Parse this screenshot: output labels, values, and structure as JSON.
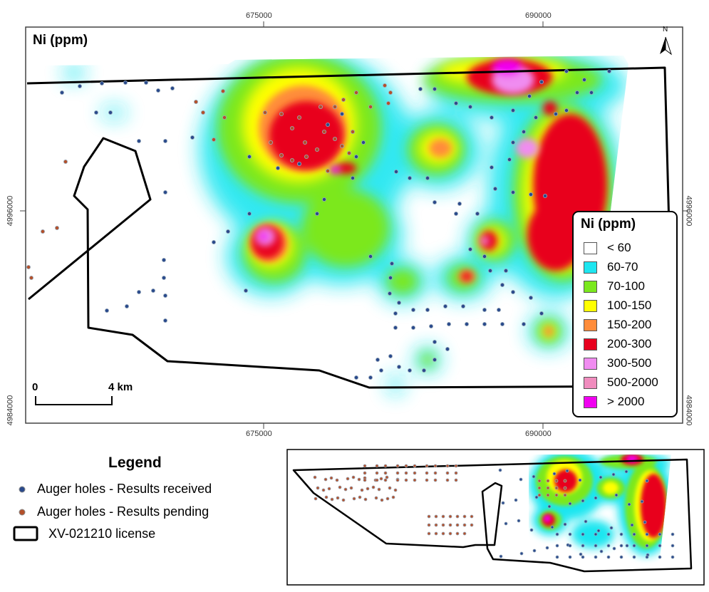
{
  "map": {
    "title": "Ni (ppm)",
    "coords": {
      "top_x": [
        "675000",
        "690000"
      ],
      "bottom_x": [
        "675000",
        "690000"
      ],
      "left_y": [
        "4996000",
        "4984000"
      ],
      "right_y": [
        "4996000",
        "4984000"
      ]
    },
    "north_arrow": "N",
    "scalebar": {
      "start": "0",
      "end": "4 km"
    }
  },
  "ni_legend": {
    "title": "Ni (ppm)",
    "classes": [
      {
        "label": "< 60",
        "color": "#ffffff"
      },
      {
        "label": "60-70",
        "color": "#1ee6f0"
      },
      {
        "label": "70-100",
        "color": "#7be81e"
      },
      {
        "label": "100-150",
        "color": "#ffff00"
      },
      {
        "label": "150-200",
        "color": "#ff8c3a"
      },
      {
        "label": "200-300",
        "color": "#e8001e"
      },
      {
        "label": "300-500",
        "color": "#f08cf0"
      },
      {
        "label": "500-2000",
        "color": "#f08cbe"
      },
      {
        "label": "> 2000",
        "color": "#f000f0"
      }
    ]
  },
  "legend": {
    "title": "Legend",
    "items": [
      {
        "label": "Auger holes - Results received",
        "color": "#2a4a8c"
      },
      {
        "label": "Auger holes - Results pending",
        "color": "#b4502a"
      },
      {
        "label": "XV-021210 license"
      }
    ]
  }
}
